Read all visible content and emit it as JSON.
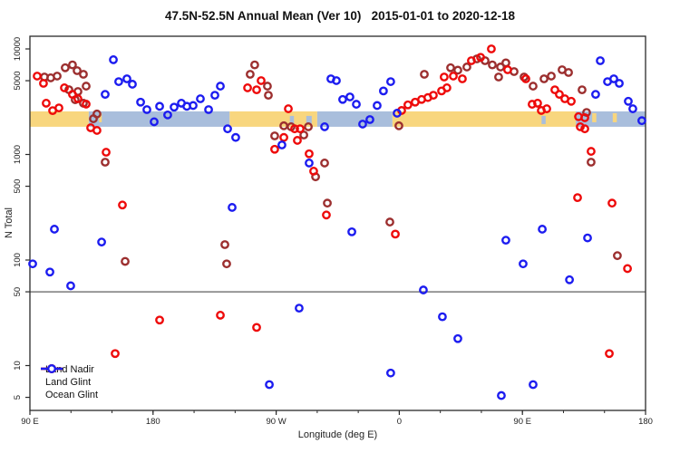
{
  "title": "47.5N-52.5N Annual Mean (Ver 10)   2015-01-01 to 2020-12-18",
  "chart_data": {
    "type": "scatter",
    "title": "47.5N-52.5N Annual Mean (Ver 10)   2015-01-01 to 2020-12-18",
    "xlabel": "Longitude (deg E)",
    "ylabel": "N Total",
    "x_axis": {
      "range": [
        90,
        540
      ],
      "minor_tick_step": 30,
      "ticks": [
        {
          "value": 90,
          "label": "90 E"
        },
        {
          "value": 180,
          "label": "180"
        },
        {
          "value": 270,
          "label": "90 W"
        },
        {
          "value": 360,
          "label": "0"
        },
        {
          "value": 450,
          "label": "90 E"
        },
        {
          "value": 540,
          "label": "180"
        }
      ]
    },
    "y_axis": {
      "scale": "log",
      "range": [
        3.8,
        13000
      ],
      "ticks": [
        {
          "value": 10000,
          "label": "10000"
        },
        {
          "value": 5000,
          "label": "5000"
        },
        {
          "value": 1000,
          "label": "1000"
        },
        {
          "value": 500,
          "label": "500"
        },
        {
          "value": 100,
          "label": "100"
        },
        {
          "value": 50,
          "label": "50"
        },
        {
          "value": 10,
          "label": "10"
        },
        {
          "value": 5,
          "label": "5"
        }
      ]
    },
    "reference_line": {
      "value": 50,
      "color": "#7a7a7a"
    },
    "surface_band": {
      "value_range": [
        1830,
        2560
      ],
      "land_color": "#f8d67e",
      "ocean_color": "#a9bedc",
      "segments": [
        {
          "type": "land",
          "from": 90,
          "to": 133
        },
        {
          "type": "ocean",
          "from": 133,
          "to": 236
        },
        {
          "type": "land",
          "from": 236,
          "to": 300
        },
        {
          "type": "ocean",
          "from": 300,
          "to": 355
        },
        {
          "type": "land",
          "from": 355,
          "to": 489
        },
        {
          "type": "ocean",
          "from": 489,
          "to": 540
        }
      ],
      "island_marks": [
        [
          140.5,
          142.5
        ],
        [
          501,
          504
        ],
        [
          516,
          519
        ]
      ],
      "lake_marks": [
        [
          280,
          283
        ],
        [
          292,
          296
        ],
        [
          464,
          467
        ]
      ]
    },
    "legend_position": "bottom-left",
    "series": [
      {
        "name": "Land Nadir",
        "color": "#9c2f2f",
        "points": [
          [
            100.6,
            5420
          ],
          [
            105.2,
            5320
          ],
          [
            109.9,
            5530
          ],
          [
            115.8,
            6630
          ],
          [
            121.1,
            7060
          ],
          [
            124.5,
            6220
          ],
          [
            129.1,
            5750
          ],
          [
            131.1,
            4440
          ],
          [
            118.5,
            4110
          ],
          [
            125.1,
            3950
          ],
          [
            123.1,
            3300
          ],
          [
            129.1,
            3060
          ],
          [
            139,
            2420
          ],
          [
            136.4,
            2180
          ],
          [
            145,
            845
          ],
          [
            159.6,
            97
          ],
          [
            232.5,
            140
          ],
          [
            233.8,
            92
          ],
          [
            254.3,
            7060
          ],
          [
            251,
            5750
          ],
          [
            263.6,
            4440
          ],
          [
            264.3,
            3640
          ],
          [
            275.6,
            1870
          ],
          [
            280.9,
            1830
          ],
          [
            290.2,
            1530
          ],
          [
            293.5,
            1830
          ],
          [
            268.9,
            1500
          ],
          [
            298.8,
            614
          ],
          [
            305.4,
            830
          ],
          [
            307.4,
            346
          ],
          [
            378.3,
            5750
          ],
          [
            359.7,
            1870
          ],
          [
            353.1,
            229
          ],
          [
            397.5,
            6630
          ],
          [
            402.8,
            6290
          ],
          [
            409.4,
            6740
          ],
          [
            416.7,
            8050
          ],
          [
            422.7,
            7730
          ],
          [
            428,
            7060
          ],
          [
            434,
            6740
          ],
          [
            437.9,
            7380
          ],
          [
            443.9,
            6100
          ],
          [
            432.6,
            5420
          ],
          [
            451.2,
            5420
          ],
          [
            457.8,
            4440
          ],
          [
            465.8,
            5210
          ],
          [
            471.1,
            5530
          ],
          [
            479,
            6350
          ],
          [
            483.7,
            5980
          ],
          [
            493.6,
            4100
          ],
          [
            496.9,
            2500
          ],
          [
            500.2,
            845
          ],
          [
            519.4,
            110
          ]
        ]
      },
      {
        "name": "Land Glint",
        "color": "#ee0a0a",
        "points": [
          [
            95.3,
            5530
          ],
          [
            99.9,
            4720
          ],
          [
            101.9,
            3060
          ],
          [
            106.6,
            2600
          ],
          [
            111.2,
            2760
          ],
          [
            115.2,
            4280
          ],
          [
            121.1,
            3710
          ],
          [
            125.1,
            3370
          ],
          [
            131.1,
            3000
          ],
          [
            134.4,
            1790
          ],
          [
            139,
            1690
          ],
          [
            145.7,
            1050
          ],
          [
            157.6,
            332
          ],
          [
            152.3,
            13
          ],
          [
            184.8,
            27
          ],
          [
            229.2,
            30
          ],
          [
            249.1,
            4280
          ],
          [
            259,
            5010
          ],
          [
            255.7,
            4100
          ],
          [
            278.9,
            2710
          ],
          [
            283.5,
            1750
          ],
          [
            287.5,
            1750
          ],
          [
            285.5,
            1360
          ],
          [
            275.6,
            1450
          ],
          [
            268.9,
            1120
          ],
          [
            294.1,
            1015
          ],
          [
            297.4,
            695
          ],
          [
            255.7,
            23
          ],
          [
            306.7,
            267
          ],
          [
            357.1,
            176
          ],
          [
            361.7,
            2610
          ],
          [
            366.3,
            2950
          ],
          [
            371.6,
            3130
          ],
          [
            376.3,
            3320
          ],
          [
            380.9,
            3460
          ],
          [
            384.9,
            3640
          ],
          [
            390.9,
            4000
          ],
          [
            394.8,
            4280
          ],
          [
            392.8,
            5420
          ],
          [
            399.5,
            5530
          ],
          [
            406.1,
            5210
          ],
          [
            412.7,
            7730
          ],
          [
            419.4,
            8330
          ],
          [
            427.3,
            10000
          ],
          [
            439.2,
            6350
          ],
          [
            452.5,
            5210
          ],
          [
            457.1,
            2990
          ],
          [
            461.1,
            3060
          ],
          [
            463.8,
            2610
          ],
          [
            467.8,
            2710
          ],
          [
            473.7,
            4100
          ],
          [
            477,
            3710
          ],
          [
            481,
            3370
          ],
          [
            485.7,
            3190
          ],
          [
            491,
            2280
          ],
          [
            495.6,
            2230
          ],
          [
            492.3,
            1830
          ],
          [
            495.6,
            1750
          ],
          [
            500.2,
            1070
          ],
          [
            515.5,
            346
          ],
          [
            490.3,
            390
          ],
          [
            513.5,
            13
          ],
          [
            526.8,
            83
          ]
        ]
      },
      {
        "name": "Ocean Glint",
        "color": "#1c1cf0",
        "points": [
          [
            151,
            7900
          ],
          [
            154.9,
            4900
          ],
          [
            160.9,
            5210
          ],
          [
            164.9,
            4630
          ],
          [
            145,
            3710
          ],
          [
            170.9,
            3130
          ],
          [
            175.5,
            2660
          ],
          [
            184.8,
            2860
          ],
          [
            180.8,
            2040
          ],
          [
            190.7,
            2370
          ],
          [
            195.4,
            2810
          ],
          [
            200.7,
            3060
          ],
          [
            204.7,
            2860
          ],
          [
            209.3,
            2910
          ],
          [
            214.6,
            3370
          ],
          [
            220.6,
            2660
          ],
          [
            225.2,
            3640
          ],
          [
            229.2,
            4440
          ],
          [
            234.5,
            1750
          ],
          [
            240.4,
            1450
          ],
          [
            237.8,
            315
          ],
          [
            142.4,
            148
          ],
          [
            92,
            92
          ],
          [
            107.9,
            196
          ],
          [
            104.6,
            77
          ],
          [
            119.8,
            57
          ],
          [
            310,
            5210
          ],
          [
            314,
            5010
          ],
          [
            318.6,
            3320
          ],
          [
            323.9,
            3510
          ],
          [
            328.6,
            2990
          ],
          [
            333.2,
            1940
          ],
          [
            338.5,
            2140
          ],
          [
            343.8,
            2910
          ],
          [
            348.4,
            4000
          ],
          [
            353.7,
            4900
          ],
          [
            358.4,
            2460
          ],
          [
            305.4,
            1830
          ],
          [
            274.2,
            1230
          ],
          [
            294.1,
            830
          ],
          [
            265,
            6.6
          ],
          [
            286.8,
            35
          ],
          [
            325.3,
            185
          ],
          [
            377.6,
            52
          ],
          [
            391.5,
            29
          ],
          [
            402.8,
            18
          ],
          [
            434.6,
            5.2
          ],
          [
            457.8,
            6.6
          ],
          [
            353.7,
            8.5
          ],
          [
            437.9,
            154
          ],
          [
            450.5,
            92
          ],
          [
            464.5,
            196
          ],
          [
            484.4,
            65
          ],
          [
            497.6,
            162
          ],
          [
            506.9,
            7730
          ],
          [
            512.2,
            4900
          ],
          [
            516.8,
            5210
          ],
          [
            520.8,
            4720
          ],
          [
            503.5,
            3710
          ],
          [
            527.4,
            3190
          ],
          [
            530.7,
            2710
          ],
          [
            537.3,
            2090
          ]
        ]
      }
    ]
  }
}
